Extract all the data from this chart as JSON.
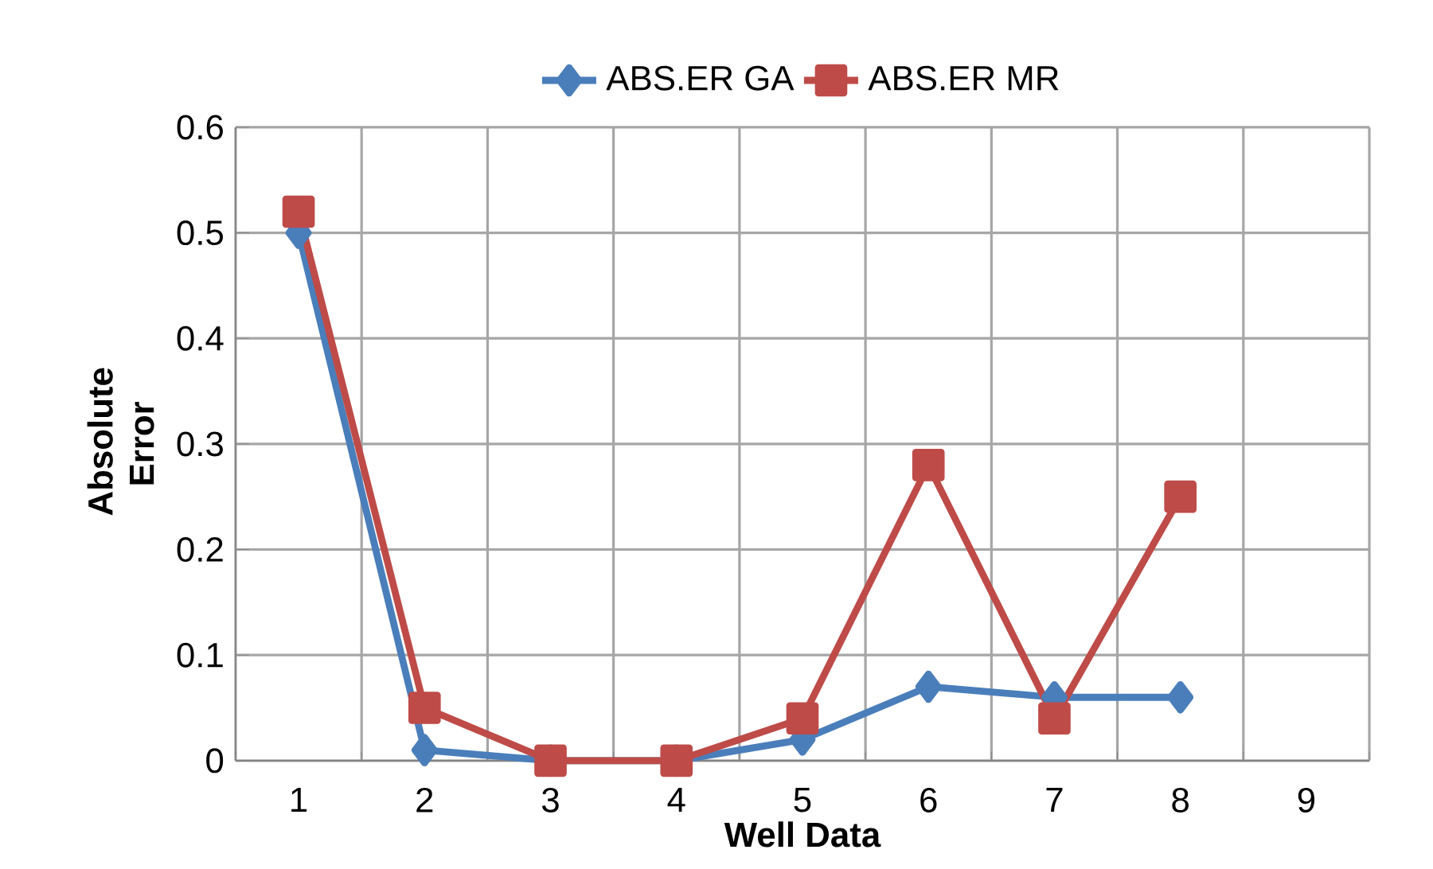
{
  "chart_data": {
    "type": "line",
    "xlabel": "Well Data",
    "ylabel": "Absolute Error",
    "categories": [
      "1",
      "2",
      "3",
      "4",
      "5",
      "6",
      "7",
      "8",
      "9"
    ],
    "series": [
      {
        "name": "ABS.ER GA",
        "color": "#4a7ebb",
        "marker": "diamond",
        "values": [
          0.5,
          0.01,
          0,
          0,
          0.02,
          0.07,
          0.06,
          0.06,
          null
        ]
      },
      {
        "name": "ABS.ER MR",
        "color": "#be4b48",
        "marker": "square",
        "values": [
          0.52,
          0.05,
          0,
          0,
          0.04,
          0.28,
          0.04,
          0.25,
          null
        ]
      }
    ],
    "ylim": [
      0,
      0.6
    ],
    "yticks": [
      0,
      0.1,
      0.2,
      0.3,
      0.4,
      0.5,
      0.6
    ],
    "grid": true,
    "legend": "top",
    "line_style": "solid"
  }
}
